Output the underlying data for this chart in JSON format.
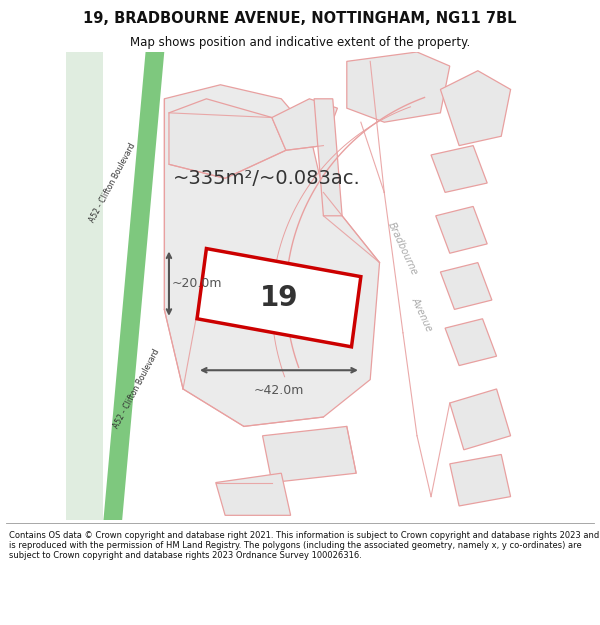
{
  "title": "19, BRADBOURNE AVENUE, NOTTINGHAM, NG11 7BL",
  "subtitle": "Map shows position and indicative extent of the property.",
  "footer": "Contains OS data © Crown copyright and database right 2021. This information is subject to Crown copyright and database rights 2023 and is reproduced with the permission of HM Land Registry. The polygons (including the associated geometry, namely x, y co-ordinates) are subject to Crown copyright and database rights 2023 Ordnance Survey 100026316.",
  "bg_color": "#ffffff",
  "map_bg": "#ffffff",
  "green_road_color": "#8dc88d",
  "green_road_alpha_bg": "#d6ead6",
  "building_fill": "#e8e8e8",
  "building_edge": "#e8a0a0",
  "road_line_color": "#e8a0a0",
  "property_fill": "#ffffff",
  "property_edge": "#cc0000",
  "dim_color": "#555555",
  "text_color": "#333333",
  "area_text": "~335m²/~0.083ac.",
  "property_number": "19",
  "dim_width": "~42.0m",
  "dim_height": "~20.0m",
  "bradbourne_text": "Bradbourne",
  "avenue_text": "Avenue",
  "road_label": "A52 - Clifton Boulevard",
  "title_fontsize": 10.5,
  "subtitle_fontsize": 8.5,
  "footer_fontsize": 6.0,
  "area_fontsize": 14,
  "number_fontsize": 20,
  "dim_fontsize": 9,
  "road_label_fontsize": 5.5
}
